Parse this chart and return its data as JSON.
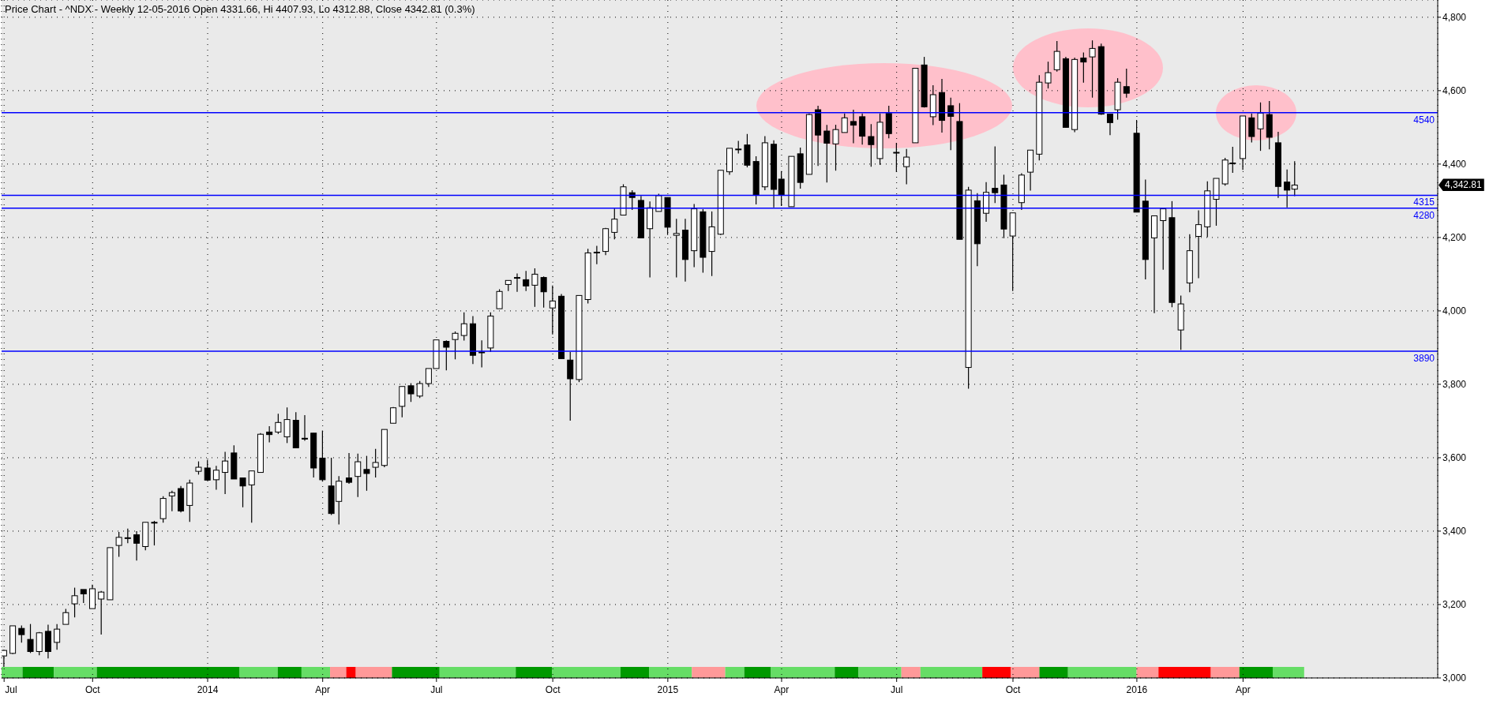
{
  "chart_data": {
    "type": "candlestick",
    "title": "Price Chart - ^NDX - Weekly 12-05-2016 Open 4331.66, Hi 4407.93, Lo 4312.88, Close 4342.81 (0.3%)",
    "x": [
      "2013-07-26",
      "2013-08-02",
      "2013-08-09",
      "2013-08-16",
      "2013-08-23",
      "2013-08-30",
      "2013-09-06",
      "2013-09-13",
      "2013-09-20",
      "2013-09-27",
      "2013-10-04",
      "2013-10-11",
      "2013-10-18",
      "2013-10-25",
      "2013-11-01",
      "2013-11-08",
      "2013-11-15",
      "2013-11-22",
      "2013-11-29",
      "2013-12-06",
      "2013-12-13",
      "2013-12-20",
      "2013-12-27",
      "2014-01-03",
      "2014-01-10",
      "2014-01-17",
      "2014-01-24",
      "2014-01-31",
      "2014-02-07",
      "2014-02-14",
      "2014-02-21",
      "2014-02-28",
      "2014-03-07",
      "2014-03-14",
      "2014-03-21",
      "2014-03-28",
      "2014-04-04",
      "2014-04-11",
      "2014-04-17",
      "2014-04-25",
      "2014-05-02",
      "2014-05-09",
      "2014-05-16",
      "2014-05-23",
      "2014-05-30",
      "2014-06-06",
      "2014-06-13",
      "2014-06-20",
      "2014-06-27",
      "2014-07-03",
      "2014-07-11",
      "2014-07-18",
      "2014-07-25",
      "2014-08-01",
      "2014-08-08",
      "2014-08-15",
      "2014-08-22",
      "2014-08-29",
      "2014-09-05",
      "2014-09-12",
      "2014-09-19",
      "2014-09-26",
      "2014-10-03",
      "2014-10-10",
      "2014-10-17",
      "2014-10-24",
      "2014-10-31",
      "2014-11-07",
      "2014-11-14",
      "2014-11-21",
      "2014-11-28",
      "2014-12-05",
      "2014-12-12",
      "2014-12-19",
      "2014-12-26",
      "2015-01-02",
      "2015-01-09",
      "2015-01-16",
      "2015-01-23",
      "2015-01-30",
      "2015-02-06",
      "2015-02-13",
      "2015-02-20",
      "2015-02-27",
      "2015-03-06",
      "2015-03-13",
      "2015-03-20",
      "2015-03-27",
      "2015-04-02",
      "2015-04-10",
      "2015-04-17",
      "2015-04-24",
      "2015-05-01",
      "2015-05-08",
      "2015-05-15",
      "2015-05-22",
      "2015-05-29",
      "2015-06-05",
      "2015-06-12",
      "2015-06-19",
      "2015-06-26",
      "2015-07-02",
      "2015-07-10",
      "2015-07-17",
      "2015-07-24",
      "2015-07-31",
      "2015-08-07",
      "2015-08-14",
      "2015-08-21",
      "2015-08-28",
      "2015-09-04",
      "2015-09-11",
      "2015-09-18",
      "2015-09-25",
      "2015-10-02",
      "2015-10-09",
      "2015-10-16",
      "2015-10-23",
      "2015-10-30",
      "2015-11-06",
      "2015-11-13",
      "2015-11-20",
      "2015-11-27",
      "2015-12-04",
      "2015-12-11",
      "2015-12-18",
      "2015-12-24",
      "2015-12-31",
      "2016-01-08",
      "2016-01-15",
      "2016-01-22",
      "2016-01-29",
      "2016-02-05",
      "2016-02-12",
      "2016-02-19",
      "2016-02-26",
      "2016-03-04",
      "2016-03-11",
      "2016-03-18",
      "2016-03-24",
      "2016-04-01",
      "2016-04-08",
      "2016-04-15",
      "2016-04-22",
      "2016-04-29",
      "2016-05-06",
      "2016-05-12"
    ],
    "ohlc": [
      [
        3060,
        3077,
        3030,
        3075
      ],
      [
        3067,
        3142,
        3065,
        3142
      ],
      [
        3135,
        3143,
        3096,
        3118
      ],
      [
        3105,
        3147,
        3068,
        3072
      ],
      [
        3072,
        3125,
        3062,
        3123
      ],
      [
        3127,
        3145,
        3053,
        3072
      ],
      [
        3097,
        3147,
        3077,
        3133
      ],
      [
        3146,
        3188,
        3146,
        3178
      ],
      [
        3202,
        3246,
        3165,
        3224
      ],
      [
        3241,
        3241,
        3204,
        3229
      ],
      [
        3189,
        3254,
        3189,
        3243
      ],
      [
        3215,
        3237,
        3118,
        3234
      ],
      [
        3213,
        3355,
        3213,
        3355
      ],
      [
        3361,
        3398,
        3330,
        3383
      ],
      [
        3381,
        3407,
        3367,
        3382
      ],
      [
        3390,
        3400,
        3320,
        3367
      ],
      [
        3358,
        3424,
        3348,
        3424
      ],
      [
        3424,
        3428,
        3361,
        3423
      ],
      [
        3434,
        3495,
        3423,
        3489
      ],
      [
        3496,
        3510,
        3454,
        3505
      ],
      [
        3516,
        3523,
        3451,
        3455
      ],
      [
        3470,
        3540,
        3425,
        3531
      ],
      [
        3563,
        3590,
        3554,
        3574
      ],
      [
        3572,
        3594,
        3539,
        3539
      ],
      [
        3540,
        3578,
        3513,
        3566
      ],
      [
        3560,
        3616,
        3501,
        3591
      ],
      [
        3613,
        3634,
        3542,
        3542
      ],
      [
        3545,
        3545,
        3465,
        3523
      ],
      [
        3526,
        3564,
        3423,
        3564
      ],
      [
        3560,
        3667,
        3560,
        3664
      ],
      [
        3670,
        3686,
        3642,
        3663
      ],
      [
        3670,
        3720,
        3665,
        3696
      ],
      [
        3657,
        3737,
        3640,
        3704
      ],
      [
        3702,
        3724,
        3627,
        3627
      ],
      [
        3653,
        3716,
        3646,
        3652
      ],
      [
        3667,
        3667,
        3546,
        3572
      ],
      [
        3599,
        3674,
        3535,
        3540
      ],
      [
        3523,
        3600,
        3444,
        3448
      ],
      [
        3481,
        3550,
        3418,
        3536
      ],
      [
        3545,
        3613,
        3529,
        3533
      ],
      [
        3549,
        3611,
        3493,
        3589
      ],
      [
        3568,
        3605,
        3510,
        3557
      ],
      [
        3574,
        3624,
        3546,
        3587
      ],
      [
        3579,
        3677,
        3574,
        3677
      ],
      [
        3694,
        3738,
        3694,
        3736
      ],
      [
        3740,
        3794,
        3710,
        3794
      ],
      [
        3796,
        3803,
        3752,
        3774
      ],
      [
        3768,
        3809,
        3763,
        3802
      ],
      [
        3802,
        3843,
        3793,
        3843
      ],
      [
        3843,
        3921,
        3843,
        3921
      ],
      [
        3917,
        3920,
        3838,
        3901
      ],
      [
        3922,
        3944,
        3868,
        3939
      ],
      [
        3933,
        3996,
        3919,
        3965
      ],
      [
        3965,
        3986,
        3855,
        3879
      ],
      [
        3888,
        3920,
        3846,
        3887
      ],
      [
        3899,
        3996,
        3888,
        3986
      ],
      [
        4006,
        4059,
        4006,
        4053
      ],
      [
        4072,
        4083,
        4054,
        4083
      ],
      [
        4091,
        4102,
        4052,
        4090
      ],
      [
        4085,
        4109,
        4054,
        4068
      ],
      [
        4070,
        4116,
        4011,
        4100
      ],
      [
        4091,
        4094,
        4009,
        4052
      ],
      [
        4008,
        4069,
        3936,
        4027
      ],
      [
        4040,
        4046,
        3870,
        3870
      ],
      [
        3866,
        3888,
        3701,
        3815
      ],
      [
        3813,
        4042,
        3806,
        4042
      ],
      [
        4031,
        4169,
        4020,
        4158
      ],
      [
        4160,
        4177,
        4127,
        4159
      ],
      [
        4162,
        4226,
        4152,
        4224
      ],
      [
        4214,
        4279,
        4195,
        4250
      ],
      [
        4261,
        4345,
        4261,
        4338
      ],
      [
        4322,
        4329,
        4275,
        4309
      ],
      [
        4301,
        4313,
        4199,
        4199
      ],
      [
        4224,
        4298,
        4091,
        4281
      ],
      [
        4271,
        4319,
        4271,
        4314
      ],
      [
        4309,
        4309,
        4207,
        4228
      ],
      [
        4206,
        4251,
        4091,
        4211
      ],
      [
        4220,
        4251,
        4080,
        4140
      ],
      [
        4164,
        4291,
        4119,
        4278
      ],
      [
        4270,
        4277,
        4104,
        4146
      ],
      [
        4162,
        4271,
        4095,
        4229
      ],
      [
        4209,
        4383,
        4207,
        4383
      ],
      [
        4379,
        4443,
        4371,
        4443
      ],
      [
        4440,
        4463,
        4429,
        4441
      ],
      [
        4452,
        4482,
        4391,
        4397
      ],
      [
        4407,
        4421,
        4290,
        4316
      ],
      [
        4338,
        4476,
        4329,
        4458
      ],
      [
        4454,
        4465,
        4282,
        4331
      ],
      [
        4359,
        4381,
        4286,
        4316
      ],
      [
        4284,
        4421,
        4284,
        4421
      ],
      [
        4428,
        4445,
        4333,
        4350
      ],
      [
        4372,
        4538,
        4372,
        4535
      ],
      [
        4548,
        4559,
        4395,
        4479
      ],
      [
        4490,
        4507,
        4350,
        4457
      ],
      [
        4455,
        4507,
        4382,
        4494
      ],
      [
        4486,
        4538,
        4486,
        4526
      ],
      [
        4516,
        4548,
        4457,
        4506
      ],
      [
        4529,
        4538,
        4453,
        4476
      ],
      [
        4475,
        4509,
        4393,
        4453
      ],
      [
        4415,
        4538,
        4398,
        4514
      ],
      [
        4538,
        4559,
        4470,
        4483
      ],
      [
        4432,
        4458,
        4378,
        4431
      ],
      [
        4393,
        4441,
        4345,
        4419
      ],
      [
        4458,
        4661,
        4458,
        4661
      ],
      [
        4670,
        4692,
        4554,
        4556
      ],
      [
        4529,
        4615,
        4506,
        4589
      ],
      [
        4595,
        4632,
        4486,
        4519
      ],
      [
        4559,
        4581,
        4438,
        4530
      ],
      [
        4516,
        4566,
        4195,
        4195
      ],
      [
        3846,
        4338,
        3788,
        4329
      ],
      [
        4300,
        4321,
        4122,
        4183
      ],
      [
        4266,
        4351,
        4243,
        4323
      ],
      [
        4334,
        4448,
        4294,
        4322
      ],
      [
        4343,
        4371,
        4198,
        4223
      ],
      [
        4204,
        4267,
        4054,
        4267
      ],
      [
        4295,
        4375,
        4275,
        4370
      ],
      [
        4378,
        4438,
        4328,
        4438
      ],
      [
        4427,
        4642,
        4410,
        4623
      ],
      [
        4621,
        4679,
        4606,
        4649
      ],
      [
        4657,
        4735,
        4652,
        4707
      ],
      [
        4687,
        4692,
        4500,
        4500
      ],
      [
        4494,
        4690,
        4487,
        4685
      ],
      [
        4689,
        4704,
        4622,
        4678
      ],
      [
        4692,
        4737,
        4581,
        4715
      ],
      [
        4720,
        4728,
        4534,
        4536
      ],
      [
        4536,
        4536,
        4479,
        4513
      ],
      [
        4548,
        4634,
        4521,
        4623
      ],
      [
        4611,
        4660,
        4581,
        4593
      ],
      [
        4484,
        4520,
        4269,
        4269
      ],
      [
        4299,
        4358,
        4086,
        4140
      ],
      [
        4199,
        4259,
        3994,
        4259
      ],
      [
        4246,
        4278,
        4112,
        4278
      ],
      [
        4254,
        4299,
        4010,
        4023
      ],
      [
        3948,
        4042,
        3894,
        4019
      ],
      [
        4076,
        4209,
        4051,
        4164
      ],
      [
        4203,
        4274,
        4089,
        4235
      ],
      [
        4229,
        4353,
        4201,
        4327
      ],
      [
        4304,
        4361,
        4232,
        4361
      ],
      [
        4346,
        4417,
        4341,
        4411
      ],
      [
        4403,
        4447,
        4376,
        4402
      ],
      [
        4415,
        4531,
        4384,
        4531
      ],
      [
        4526,
        4538,
        4459,
        4475
      ],
      [
        4496,
        4568,
        4436,
        4539
      ],
      [
        4535,
        4572,
        4440,
        4473
      ],
      [
        4458,
        4488,
        4308,
        4339
      ],
      [
        4351,
        4385,
        4282,
        4329
      ],
      [
        4331.66,
        4407.93,
        4312.88,
        4342.81
      ]
    ],
    "color": "#000000",
    "xlim": [
      "2013-07-24",
      "2016-09-02"
    ],
    "xticks": [
      {
        "value": "2013-07-26",
        "label": "Jul"
      },
      {
        "value": "2013-10-04",
        "label": "Oct"
      },
      {
        "value": "2014-01-03",
        "label": "2014"
      },
      {
        "value": "2014-04-04",
        "label": "Apr"
      },
      {
        "value": "2014-07-03",
        "label": "Jul"
      },
      {
        "value": "2014-10-03",
        "label": "Oct"
      },
      {
        "value": "2015-01-02",
        "label": "2015"
      },
      {
        "value": "2015-04-02",
        "label": "Apr"
      },
      {
        "value": "2015-07-02",
        "label": "Jul"
      },
      {
        "value": "2015-10-02",
        "label": "Oct"
      },
      {
        "value": "2016-01-08",
        "label": "2016"
      },
      {
        "value": "2016-04-01",
        "label": "Apr"
      }
    ],
    "ylim": [
      3000,
      4847
    ],
    "yticks": [
      {
        "value": 3000,
        "label": "3,000"
      },
      {
        "value": 3200,
        "label": "3,200"
      },
      {
        "value": 3400,
        "label": "3,400"
      },
      {
        "value": 3600,
        "label": "3,600"
      },
      {
        "value": 3800,
        "label": "3,800"
      },
      {
        "value": 4000,
        "label": "4,000"
      },
      {
        "value": 4200,
        "label": "4,200"
      },
      {
        "value": 4400,
        "label": "4,400"
      },
      {
        "value": 4600,
        "label": "4,600"
      },
      {
        "value": 4800,
        "label": "4,800"
      }
    ],
    "grid": true,
    "ref_lines": [
      {
        "axis": "y",
        "value": 4540,
        "label": "4540",
        "color": "#0000ff"
      },
      {
        "axis": "y",
        "value": 4315,
        "label": "4315",
        "color": "#0000ff"
      },
      {
        "axis": "y",
        "value": 4280,
        "label": "4280",
        "color": "#0000ff"
      },
      {
        "axis": "y",
        "value": 3890,
        "label": "3890",
        "color": "#0000ff"
      }
    ],
    "annotations": [
      "4,342.81"
    ]
  }
}
